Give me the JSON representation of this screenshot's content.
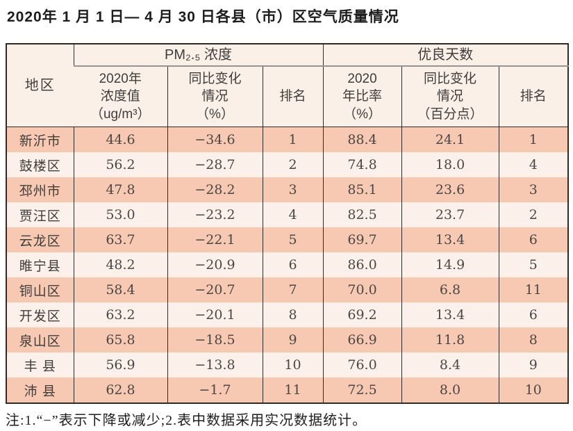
{
  "title": "2020年 1 月 1 日— 4 月 30 日各县（市）区空气质量情况",
  "table": {
    "headers": {
      "region": "地区",
      "pm_group": "PM₂.₅ 浓度",
      "days_group": "优良天数",
      "pm_value": "2020年\n浓度值\n（ug/m³）",
      "pm_change": "同比变化\n情况\n（%）",
      "pm_rank": "排名",
      "days_rate": "2020\n年比率\n（%）",
      "days_change": "同比变化\n情况\n（百分点）",
      "days_rank": "排名"
    },
    "rows": [
      [
        "新沂市",
        "44.6",
        "−34.6",
        "1",
        "88.4",
        "24.1",
        "1"
      ],
      [
        "鼓楼区",
        "56.2",
        "−28.7",
        "2",
        "74.8",
        "18.0",
        "4"
      ],
      [
        "邳州市",
        "47.8",
        "−28.2",
        "3",
        "85.1",
        "23.6",
        "3"
      ],
      [
        "贾汪区",
        "53.0",
        "−23.2",
        "4",
        "82.5",
        "23.7",
        "2"
      ],
      [
        "云龙区",
        "63.7",
        "−22.1",
        "5",
        "69.7",
        "13.4",
        "6"
      ],
      [
        "睢宁县",
        "48.2",
        "−20.9",
        "6",
        "86.0",
        "14.9",
        "5"
      ],
      [
        "铜山区",
        "58.4",
        "−20.7",
        "7",
        "70.0",
        "6.8",
        "11"
      ],
      [
        "开发区",
        "63.2",
        "−20.1",
        "8",
        "69.2",
        "13.4",
        "6"
      ],
      [
        "泉山区",
        "65.8",
        "−18.5",
        "9",
        "66.9",
        "11.8",
        "8"
      ],
      [
        "丰 县",
        "56.9",
        "−13.8",
        "10",
        "76.0",
        "8.4",
        "9"
      ],
      [
        "沛 县",
        "62.8",
        "−1.7",
        "11",
        "72.5",
        "8.0",
        "10"
      ]
    ]
  },
  "footnote": "注:1.“−”表示下降或减少;2.表中数据采用实况数据统计。",
  "colors": {
    "row_salmon": "#f8c9b2",
    "row_light": "#fcf1ea",
    "header_bg": "#fbf0e8",
    "border_dark": "#2e2a28"
  }
}
